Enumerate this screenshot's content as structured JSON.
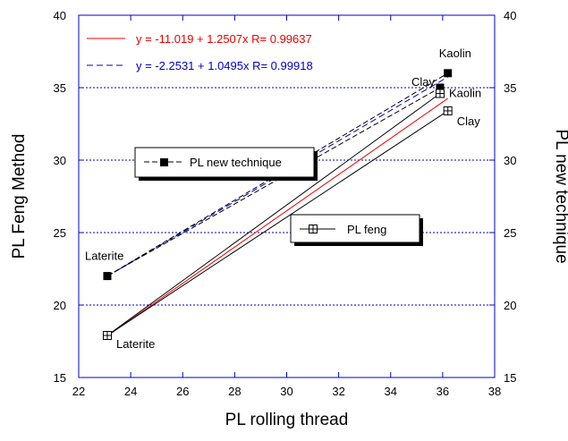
{
  "chart_data": {
    "type": "line",
    "xlabel": "PL rolling thread",
    "ylabel_left": "PL Feng Method",
    "ylabel_right": "PL new technique",
    "xlim": [
      22,
      38
    ],
    "ylim": [
      15,
      40
    ],
    "x_ticks": [
      "22",
      "24",
      "26",
      "28",
      "30",
      "32",
      "34",
      "36",
      "38"
    ],
    "y_ticks": [
      "15",
      "20",
      "25",
      "30",
      "35",
      "40"
    ],
    "grid": "horizontal dotted",
    "colors": {
      "axis": "#0000cc",
      "grid": "#0000cc",
      "fit_feng": "#ee0000",
      "fit_new": "#0000cc"
    },
    "series": [
      {
        "name": "PL new technique",
        "marker": "filled-square",
        "points": [
          {
            "x": 23.1,
            "y": 22.0,
            "label": "Laterite"
          },
          {
            "x": 35.9,
            "y": 35.0,
            "label": "Clay"
          },
          {
            "x": 36.2,
            "y": 36.0,
            "label": "Kaolin"
          }
        ],
        "upper_bound": [
          [
            23.1,
            22.0
          ],
          [
            36.2,
            36.0
          ]
        ],
        "lower_bound": [
          [
            23.1,
            22.0
          ],
          [
            35.9,
            35.0
          ]
        ]
      },
      {
        "name": "PL feng",
        "marker": "crossed-square",
        "points": [
          {
            "x": 23.1,
            "y": 17.9,
            "label": "Laterite"
          },
          {
            "x": 35.9,
            "y": 34.6,
            "label": "Kaolin"
          },
          {
            "x": 36.2,
            "y": 33.4,
            "label": "Clay"
          }
        ],
        "upper_bound": [
          [
            23.1,
            17.9
          ],
          [
            35.9,
            34.6
          ]
        ],
        "lower_bound": [
          [
            23.1,
            17.9
          ],
          [
            36.2,
            33.4
          ]
        ]
      }
    ],
    "fits": [
      {
        "text": "y = -11.019 + 1.2507x   R= 0.99637",
        "intercept": -11.019,
        "slope": 1.2507,
        "x_range": [
          23.1,
          36.2
        ],
        "style": "solid",
        "color": "#ee0000"
      },
      {
        "text": "y = -2.2531 + 1.0495x   R= 0.99918",
        "intercept": -2.2531,
        "slope": 1.0495,
        "x_range": [
          23.1,
          36.2
        ],
        "style": "dashed",
        "color": "#0000cc"
      }
    ],
    "legends": [
      {
        "text": "PL new technique",
        "marker": "filled-square"
      },
      {
        "text": "PL feng",
        "marker": "crossed-square"
      }
    ]
  }
}
